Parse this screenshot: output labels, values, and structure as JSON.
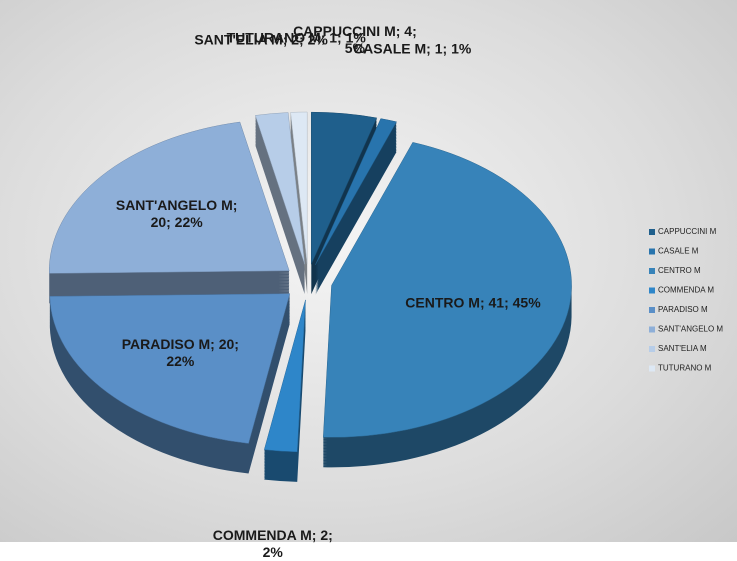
{
  "chart_data": {
    "type": "pie",
    "categories": [
      "CAPPUCCINI M",
      "CASALE M",
      "CENTRO M",
      "COMMENDA M",
      "PARADISO M",
      "SANT'ANGELO M",
      "SANT'ELIA M",
      "TUTURANO M"
    ],
    "values": [
      4,
      1,
      41,
      2,
      20,
      20,
      2,
      1
    ],
    "value_labels": [
      "CAPPUCCINI M; 4; 5%",
      "CASALE M; 1; 1%",
      "CENTRO M; 41; 45%",
      "COMMENDA M; 2; 2%",
      "PARADISO M; 20; 22%",
      "SANT'ANGELO M; 20; 22%",
      "SANT'ELIA M; 2; 2%",
      "TUTURANO M; 1; 1%"
    ],
    "colors": [
      "#1f5f8c",
      "#2874ad",
      "#3783b9",
      "#2e86c9",
      "#5a8fc7",
      "#8eafd8",
      "#b7cde8",
      "#dde8f4"
    ],
    "legend": "right"
  }
}
